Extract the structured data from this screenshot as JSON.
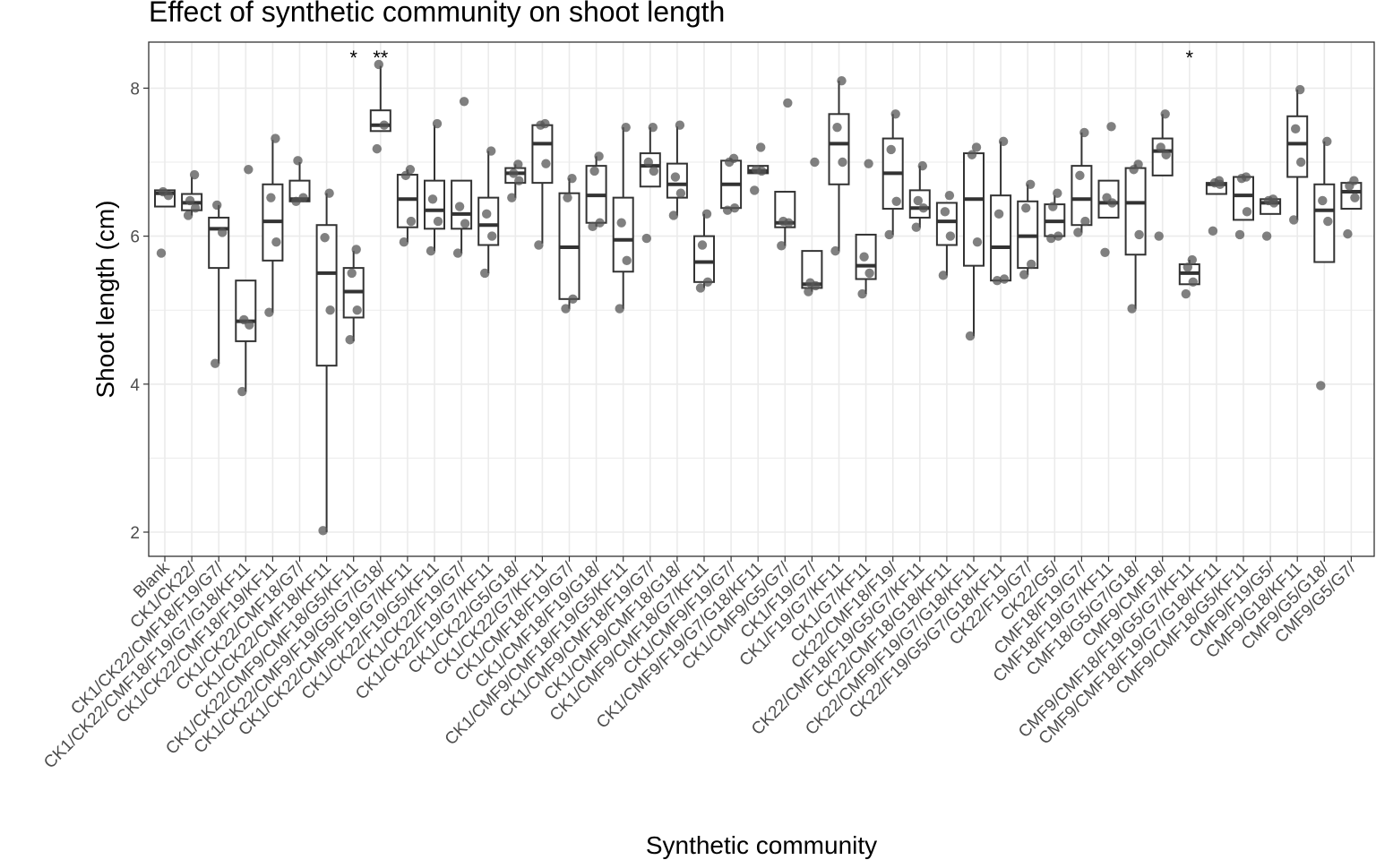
{
  "chart_data": {
    "type": "box",
    "title": "Effect of synthetic community on shoot length",
    "xlabel": "Synthetic community",
    "ylabel": "Shoot length (cm)",
    "ylim": [
      1.7,
      8.65
    ],
    "yticks": [
      2,
      4,
      6,
      8
    ],
    "grid": true,
    "legend": "none",
    "colors": {
      "box": "#333333",
      "point": "#555555",
      "grid": "#ebebeb",
      "panel_border": "#333333"
    },
    "categories": [
      "Blank",
      "CK1/CK22/",
      "CK1/CK22/CMF18/F19/G7/",
      "CK1/CK22/CMF18/F19/G7/G18/KF11",
      "CK1/CK22/CMF18/F19/KF11",
      "CK1/CK22/CMF18/G7/",
      "CK1/CK22/CMF18/KF11",
      "CK1/CK22/CMF9/CMF18/G5/KF11",
      "CK1/CK22/CMF9/F19/G5/G7/G18/",
      "CK1/CK22/CMF9/F19/G7/KF11",
      "CK1/CK22/F19/G5/KF11",
      "CK1/CK22/F19/G7/",
      "CK1/CK22/F19/G7/KF11",
      "CK1/CK22/G5/G18/",
      "CK1/CK22/G7/KF11",
      "CK1/CMF18/F19/G7/",
      "CK1/CMF18/F19/G18/",
      "CK1/CMF9/CMF18/F19/G5/KF11",
      "CK1/CMF9/CMF18/F19/G7/",
      "CK1/CMF9/CMF18/G18/",
      "CK1/CMF9/CMF18/G7/KF11",
      "CK1/CMF9/F19/G7/",
      "CK1/CMF9/F19/G7/G18/KF11",
      "CK1/CMF9/G5/G7/",
      "CK1/F19/G7/",
      "CK1/F19/G7/KF11",
      "CK1/G7/KF11",
      "CK22/CMF18/F19/",
      "CK22/CMF18/F19/G5/G7/KF11",
      "CK22/CMF18/G18/KF11",
      "CK22/CMF9/F19/G7/G18/KF11",
      "CK22/F19/G5/G7/G18/KF11",
      "CK22/F19/G7/",
      "CK22/G5/",
      "CMF18/F19/G7/",
      "CMF18/F19/G7/KF11",
      "CMF18/G5/G7/G18/",
      "CMF9/CMF18/",
      "CMF9/CMF18/F19/G5/G7/KF11",
      "CMF9/CMF18/F19/G7/G18/KF11",
      "CMF9/CMF18/G5/KF11",
      "CMF9/F19/G5/",
      "CMF9/G18/KF11",
      "CMF9/G5/G18/",
      "CMF9/G5/G7/"
    ],
    "boxes": [
      {
        "min": 6.4,
        "q1": 6.4,
        "median": 6.58,
        "q3": 6.62,
        "max": 6.62,
        "points": [
          5.77,
          6.55,
          6.6
        ]
      },
      {
        "min": 6.28,
        "q1": 6.35,
        "median": 6.45,
        "q3": 6.57,
        "max": 6.8,
        "points": [
          6.28,
          6.38,
          6.48,
          6.83
        ]
      },
      {
        "min": 4.28,
        "q1": 5.57,
        "median": 6.1,
        "q3": 6.25,
        "max": 6.42,
        "points": [
          4.28,
          6.05,
          6.42
        ]
      },
      {
        "min": 3.9,
        "q1": 4.58,
        "median": 4.85,
        "q3": 5.4,
        "max": 5.4,
        "points": [
          3.9,
          4.8,
          4.87,
          6.9
        ]
      },
      {
        "min": 4.97,
        "q1": 5.67,
        "median": 6.2,
        "q3": 6.7,
        "max": 7.3,
        "points": [
          4.97,
          5.92,
          6.52,
          7.32
        ]
      },
      {
        "min": 6.47,
        "q1": 6.47,
        "median": 6.5,
        "q3": 6.75,
        "max": 7.0,
        "points": [
          6.47,
          6.52,
          7.02
        ]
      },
      {
        "min": 2.0,
        "q1": 4.25,
        "median": 5.5,
        "q3": 6.15,
        "max": 6.58,
        "points": [
          2.02,
          5.0,
          5.98,
          6.58
        ]
      },
      {
        "min": 4.58,
        "q1": 4.9,
        "median": 5.25,
        "q3": 5.57,
        "max": 5.8,
        "points": [
          4.6,
          5.0,
          5.5,
          5.82
        ]
      },
      {
        "min": 7.42,
        "q1": 7.42,
        "median": 7.5,
        "q3": 7.7,
        "max": 8.3,
        "points": [
          7.18,
          7.5,
          8.32
        ]
      },
      {
        "min": 5.92,
        "q1": 6.12,
        "median": 6.5,
        "q3": 6.83,
        "max": 6.9,
        "points": [
          5.92,
          6.2,
          6.82,
          6.9
        ]
      },
      {
        "min": 5.8,
        "q1": 6.1,
        "median": 6.35,
        "q3": 6.75,
        "max": 7.5,
        "points": [
          5.8,
          6.2,
          6.5,
          7.52
        ]
      },
      {
        "min": 5.77,
        "q1": 6.1,
        "median": 6.3,
        "q3": 6.75,
        "max": 6.75,
        "points": [
          5.77,
          6.17,
          6.4,
          7.82
        ]
      },
      {
        "min": 5.5,
        "q1": 5.88,
        "median": 6.15,
        "q3": 6.52,
        "max": 7.15,
        "points": [
          5.5,
          6.0,
          6.3,
          7.15
        ]
      },
      {
        "min": 6.52,
        "q1": 6.72,
        "median": 6.85,
        "q3": 6.92,
        "max": 6.97,
        "points": [
          6.52,
          6.75,
          6.85,
          6.97
        ]
      },
      {
        "min": 5.9,
        "q1": 6.72,
        "median": 7.25,
        "q3": 7.5,
        "max": 7.52,
        "points": [
          5.88,
          6.98,
          7.5,
          7.52
        ]
      },
      {
        "min": 5.02,
        "q1": 5.15,
        "median": 5.85,
        "q3": 6.58,
        "max": 6.78,
        "points": [
          5.02,
          5.15,
          6.52,
          6.78
        ]
      },
      {
        "min": 6.13,
        "q1": 6.18,
        "median": 6.55,
        "q3": 6.95,
        "max": 7.08,
        "points": [
          6.13,
          6.18,
          6.88,
          7.08
        ]
      },
      {
        "min": 5.02,
        "q1": 5.52,
        "median": 5.95,
        "q3": 6.52,
        "max": 7.47,
        "points": [
          5.02,
          5.67,
          6.18,
          7.47
        ]
      },
      {
        "min": 6.67,
        "q1": 6.67,
        "median": 6.95,
        "q3": 7.12,
        "max": 7.47,
        "points": [
          5.97,
          6.88,
          7.0,
          7.47
        ]
      },
      {
        "min": 6.28,
        "q1": 6.52,
        "median": 6.7,
        "q3": 6.98,
        "max": 7.48,
        "points": [
          6.28,
          6.58,
          6.8,
          7.5
        ]
      },
      {
        "min": 5.3,
        "q1": 5.38,
        "median": 5.65,
        "q3": 6.0,
        "max": 6.3,
        "points": [
          5.3,
          5.38,
          5.88,
          6.3
        ]
      },
      {
        "min": 6.35,
        "q1": 6.38,
        "median": 6.7,
        "q3": 7.02,
        "max": 7.05,
        "points": [
          6.35,
          6.38,
          7.0,
          7.05
        ]
      },
      {
        "min": 6.85,
        "q1": 6.85,
        "median": 6.88,
        "q3": 6.95,
        "max": 6.95,
        "points": [
          6.62,
          6.88,
          6.9,
          7.2
        ]
      },
      {
        "min": 5.87,
        "q1": 6.12,
        "median": 6.18,
        "q3": 6.6,
        "max": 6.6,
        "points": [
          5.87,
          6.18,
          6.2,
          7.8
        ]
      },
      {
        "min": 5.25,
        "q1": 5.3,
        "median": 5.35,
        "q3": 5.8,
        "max": 5.8,
        "points": [
          5.25,
          5.33,
          5.37,
          7.0
        ]
      },
      {
        "min": 5.8,
        "q1": 6.7,
        "median": 7.25,
        "q3": 7.65,
        "max": 8.1,
        "points": [
          5.8,
          7.0,
          7.47,
          8.1
        ]
      },
      {
        "min": 5.22,
        "q1": 5.42,
        "median": 5.6,
        "q3": 6.02,
        "max": 6.02,
        "points": [
          5.22,
          5.5,
          5.72,
          6.98
        ]
      },
      {
        "min": 6.02,
        "q1": 6.37,
        "median": 6.85,
        "q3": 7.32,
        "max": 7.65,
        "points": [
          6.02,
          6.47,
          7.17,
          7.65
        ]
      },
      {
        "min": 6.12,
        "q1": 6.25,
        "median": 6.38,
        "q3": 6.62,
        "max": 6.95,
        "points": [
          6.12,
          6.38,
          6.48,
          6.95
        ]
      },
      {
        "min": 5.47,
        "q1": 5.88,
        "median": 6.2,
        "q3": 6.45,
        "max": 6.45,
        "points": [
          5.47,
          6.0,
          6.33,
          6.55
        ]
      },
      {
        "min": 4.65,
        "q1": 5.6,
        "median": 6.5,
        "q3": 7.12,
        "max": 7.12,
        "points": [
          4.65,
          5.92,
          7.1,
          7.2
        ]
      },
      {
        "min": 5.38,
        "q1": 5.4,
        "median": 5.85,
        "q3": 6.55,
        "max": 7.28,
        "points": [
          5.4,
          5.42,
          6.3,
          7.28
        ]
      },
      {
        "min": 5.48,
        "q1": 5.57,
        "median": 6.0,
        "q3": 6.47,
        "max": 6.7,
        "points": [
          5.48,
          5.62,
          6.38,
          6.7
        ]
      },
      {
        "min": 5.97,
        "q1": 6.0,
        "median": 6.2,
        "q3": 6.43,
        "max": 6.55,
        "points": [
          5.97,
          6.0,
          6.4,
          6.58
        ]
      },
      {
        "min": 6.05,
        "q1": 6.15,
        "median": 6.5,
        "q3": 6.95,
        "max": 7.4,
        "points": [
          6.05,
          6.2,
          6.82,
          7.4
        ]
      },
      {
        "min": 6.25,
        "q1": 6.25,
        "median": 6.45,
        "q3": 6.75,
        "max": 6.75,
        "points": [
          5.78,
          6.45,
          6.52,
          7.48
        ]
      },
      {
        "min": 5.02,
        "q1": 5.75,
        "median": 6.45,
        "q3": 6.92,
        "max": 6.97,
        "points": [
          5.02,
          6.02,
          6.9,
          6.97
        ]
      },
      {
        "min": 6.82,
        "q1": 6.82,
        "median": 7.15,
        "q3": 7.32,
        "max": 7.65,
        "points": [
          6.0,
          7.1,
          7.2,
          7.65
        ]
      },
      {
        "min": 5.35,
        "q1": 5.35,
        "median": 5.5,
        "q3": 5.62,
        "max": 5.68,
        "points": [
          5.22,
          5.38,
          5.58,
          5.68
        ]
      },
      {
        "min": 6.57,
        "q1": 6.57,
        "median": 6.7,
        "q3": 6.72,
        "max": 6.72,
        "points": [
          6.07,
          6.7,
          6.72,
          6.75
        ]
      },
      {
        "min": 6.22,
        "q1": 6.22,
        "median": 6.55,
        "q3": 6.8,
        "max": 6.8,
        "points": [
          6.02,
          6.33,
          6.78,
          6.8
        ]
      },
      {
        "min": 6.3,
        "q1": 6.3,
        "median": 6.45,
        "q3": 6.5,
        "max": 6.5,
        "points": [
          6.0,
          6.45,
          6.48,
          6.5
        ]
      },
      {
        "min": 6.22,
        "q1": 6.8,
        "median": 7.25,
        "q3": 7.62,
        "max": 7.98,
        "points": [
          6.22,
          7.0,
          7.45,
          7.98
        ]
      },
      {
        "min": 5.65,
        "q1": 5.65,
        "median": 6.35,
        "q3": 6.7,
        "max": 7.28,
        "points": [
          3.98,
          6.2,
          6.48,
          7.28
        ]
      },
      {
        "min": 6.37,
        "q1": 6.37,
        "median": 6.6,
        "q3": 6.72,
        "max": 6.72,
        "points": [
          6.03,
          6.52,
          6.68,
          6.75
        ]
      }
    ],
    "annotations": [
      {
        "category": "CK1/CK22/CMF9/CMF18/G5/KF11",
        "text": "*"
      },
      {
        "category": "CK1/CK22/CMF9/F19/G5/G7/G18/",
        "text": "**"
      },
      {
        "category": "CMF9/CMF18/F19/G5/G7/KF11",
        "text": "*"
      }
    ]
  }
}
